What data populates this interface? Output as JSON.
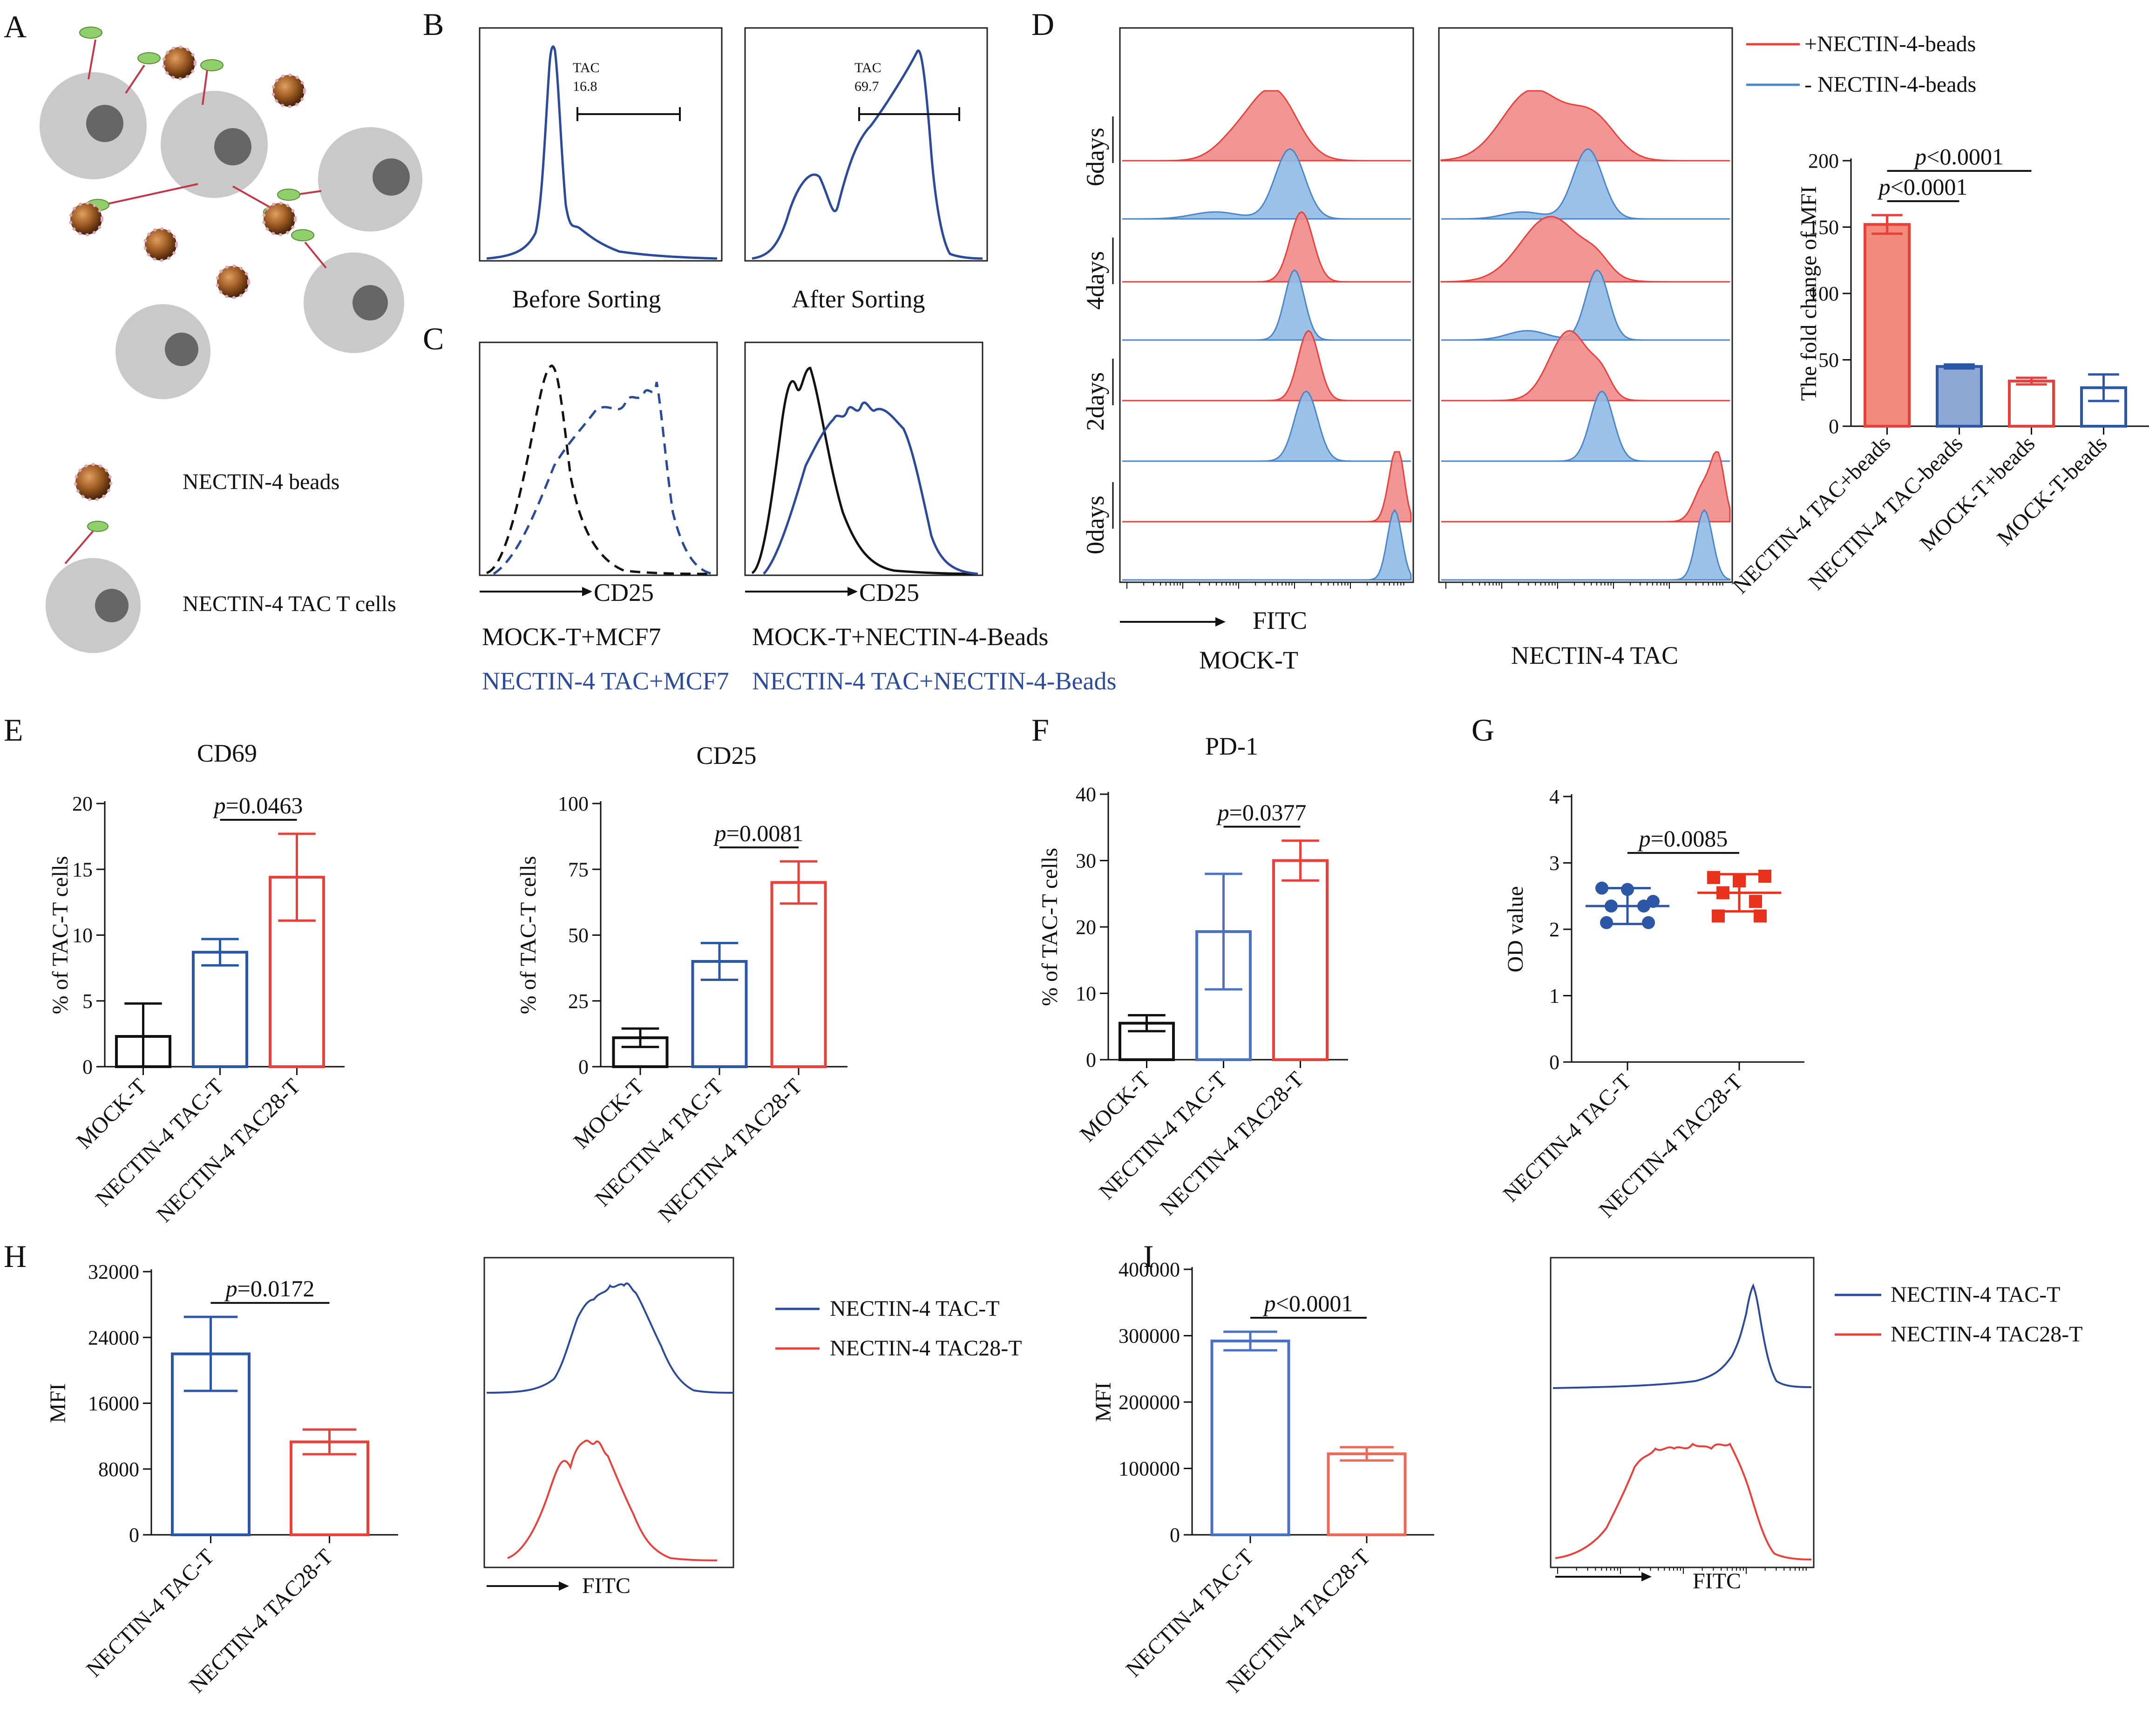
{
  "figure": {
    "panel_letters": [
      "A",
      "B",
      "C",
      "D",
      "E",
      "F",
      "G",
      "H",
      "I"
    ],
    "schematic_legend": {
      "beads_label": "NECTIN-4 beads",
      "cells_label": "NECTIN-4 TAC T cells"
    },
    "panel_B": {
      "gate_label": "TAC",
      "before_value": "16.8",
      "after_value": "69.7",
      "before_caption": "Before Sorting",
      "after_caption": "After Sorting"
    },
    "panel_C": {
      "axis_label": "CD25",
      "left_mock": "MOCK-T+MCF7",
      "left_tac": "NECTIN-4 TAC+MCF7",
      "right_mock": "MOCK-T+NECTIN-4-Beads",
      "right_tac": "NECTIN-4 TAC+NECTIN-4-Beads"
    },
    "panel_D": {
      "legend_plus": "+NECTIN-4-beads",
      "legend_minus": "- NECTIN-4-beads",
      "days": [
        "6days",
        "4days",
        "2days",
        "0days"
      ],
      "axis_label": "FITC",
      "left_caption": "MOCK-T",
      "right_caption": "NECTIN-4 TAC",
      "colors": {
        "plus": "#e8413c",
        "minus": "#4a86c8",
        "plus_fill": "#f08a8a",
        "minus_fill": "#8fbbe6"
      }
    },
    "panel_H_overlay": {
      "axis_label": "FITC",
      "legend": [
        "NECTIN-4 TAC-T",
        "NECTIN-4 TAC28-T"
      ]
    },
    "panel_I_overlay": {
      "axis_label": "FITC",
      "legend": [
        "NECTIN-4 TAC-T",
        "NECTIN-4 TAC28-T"
      ]
    }
  },
  "chart_data": [
    {
      "id": "D_bar",
      "type": "bar",
      "ylabel": "The fold change of MFI",
      "ylim": [
        0,
        200
      ],
      "yticks": [
        0,
        50,
        100,
        150,
        200
      ],
      "categories": [
        "NECTIN-4 TAC+beads",
        "NECTIN-4 TAC-beads",
        "MOCK-T+beads",
        "MOCK-T-beads"
      ],
      "values": [
        152,
        45,
        34,
        29
      ],
      "errors": [
        7,
        1.5,
        2.5,
        10
      ],
      "colors": [
        "#e8413c",
        "#2b57a6",
        "#e8413c",
        "#2b57a6"
      ],
      "fills": [
        "#f28b7c",
        "#8ea8d6",
        "#ffffff",
        "#ffffff"
      ],
      "comparisons": [
        {
          "from": 0,
          "to": 1,
          "p_prefix": "p",
          "p_rest": "<0.0001"
        },
        {
          "from": 0,
          "to": 2,
          "p_prefix": "p",
          "p_rest": "<0.0001"
        }
      ]
    },
    {
      "id": "E_cd69",
      "type": "bar",
      "title": "CD69",
      "ylabel": "% of TAC-T cells",
      "ylim": [
        0,
        20
      ],
      "yticks": [
        0,
        5,
        10,
        15,
        20
      ],
      "categories": [
        "MOCK-T",
        "NECTIN-4 TAC-T",
        "NECTIN-4 TAC28-T"
      ],
      "values": [
        2.3,
        8.7,
        14.4
      ],
      "errors": [
        2.5,
        1.0,
        3.3
      ],
      "colors": [
        "#111111",
        "#2b57a6",
        "#e8413c"
      ],
      "fills": [
        "#ffffff",
        "#ffffff",
        "#ffffff"
      ],
      "comparisons": [
        {
          "from": 1,
          "to": 2,
          "p_prefix": "p",
          "p_rest": "=0.0463"
        }
      ]
    },
    {
      "id": "E_cd25",
      "type": "bar",
      "title": "CD25",
      "ylabel": "% of TAC-T cells",
      "ylim": [
        0,
        100
      ],
      "yticks": [
        0,
        25,
        50,
        75,
        100
      ],
      "categories": [
        "MOCK-T",
        "NECTIN-4 TAC-T",
        "NECTIN-4 TAC28-T"
      ],
      "values": [
        11,
        40,
        70
      ],
      "errors": [
        3.5,
        7,
        8
      ],
      "colors": [
        "#111111",
        "#2b57a6",
        "#e8413c"
      ],
      "fills": [
        "#ffffff",
        "#ffffff",
        "#ffffff"
      ],
      "comparisons": [
        {
          "from": 1,
          "to": 2,
          "p_prefix": "p",
          "p_rest": "=0.0081"
        }
      ]
    },
    {
      "id": "F_pd1",
      "type": "bar",
      "title": "PD-1",
      "ylabel": "% of TAC-T cells",
      "ylim": [
        0,
        40
      ],
      "yticks": [
        0,
        10,
        20,
        30,
        40
      ],
      "categories": [
        "MOCK-T",
        "NECTIN-4 TAC-T",
        "NECTIN-4 TAC28-T"
      ],
      "values": [
        5.5,
        19.3,
        30
      ],
      "errors": [
        1.2,
        8.7,
        3
      ],
      "colors": [
        "#111111",
        "#4a72c4",
        "#e8413c"
      ],
      "fills": [
        "#ffffff",
        "#ffffff",
        "#ffffff"
      ],
      "comparisons": [
        {
          "from": 1,
          "to": 2,
          "p_prefix": "p",
          "p_rest": "=0.0377"
        }
      ]
    },
    {
      "id": "G_od",
      "type": "scatter",
      "ylabel": "OD value",
      "ylim": [
        0,
        4
      ],
      "yticks": [
        0,
        1,
        2,
        3,
        4
      ],
      "categories": [
        "NECTIN-4 TAC-T",
        "NECTIN-4 TAC28-T"
      ],
      "series": [
        {
          "name": "NECTIN-4 TAC-T",
          "color": "#2b57a6",
          "marker": "circle",
          "mean": 2.35,
          "sd": 0.27,
          "points": [
            2.62,
            2.6,
            2.42,
            2.35,
            2.35,
            2.1,
            2.1
          ]
        },
        {
          "name": "NECTIN-4 TAC28-T",
          "color": "#e8321e",
          "marker": "square",
          "mean": 2.55,
          "sd": 0.28,
          "points": [
            2.78,
            2.73,
            2.8,
            2.55,
            2.42,
            2.2,
            2.2
          ]
        }
      ],
      "comparisons": [
        {
          "from": 0,
          "to": 1,
          "p_prefix": "p",
          "p_rest": "=0.0085"
        }
      ]
    },
    {
      "id": "H_mfi",
      "type": "bar",
      "ylabel": "MFI",
      "ylim": [
        0,
        32000
      ],
      "yticks": [
        0,
        8000,
        16000,
        24000,
        32000
      ],
      "categories": [
        "NECTIN-4 TAC-T",
        "NECTIN-4 TAC28-T"
      ],
      "values": [
        22000,
        11300
      ],
      "errors": [
        4500,
        1500
      ],
      "colors": [
        "#2b57a6",
        "#e8413c"
      ],
      "fills": [
        "#ffffff",
        "#ffffff"
      ],
      "comparisons": [
        {
          "from": 0,
          "to": 1,
          "p_prefix": "p",
          "p_rest": "=0.0172"
        }
      ]
    },
    {
      "id": "I_mfi",
      "type": "bar",
      "ylabel": "MFI",
      "ylim": [
        0,
        400000
      ],
      "yticks": [
        0,
        100000,
        200000,
        300000,
        400000
      ],
      "categories": [
        "NECTIN-4 TAC-T",
        "NECTIN-4 TAC28-T"
      ],
      "values": [
        292000,
        122000
      ],
      "errors": [
        14000,
        10000
      ],
      "colors": [
        "#4a72c4",
        "#ec6a5a"
      ],
      "fills": [
        "#ffffff",
        "#ffffff"
      ],
      "comparisons": [
        {
          "from": 0,
          "to": 1,
          "p_prefix": "p",
          "p_rest": "<0.0001"
        }
      ]
    }
  ]
}
